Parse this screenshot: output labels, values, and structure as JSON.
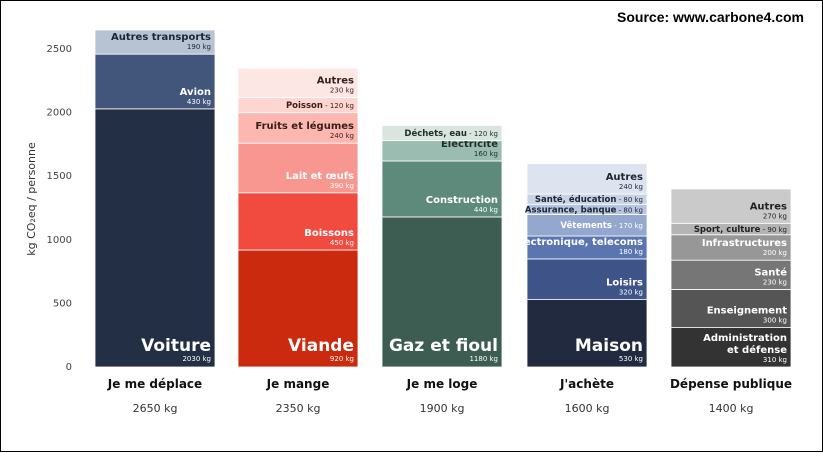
{
  "source": "Source: www.carbone4.com",
  "chart_data": {
    "type": "bar",
    "stacked": true,
    "title": "",
    "ylabel": "kg CO₂eq / personne",
    "ylim": [
      0,
      2650
    ],
    "yticks": [
      0,
      500,
      1000,
      1500,
      2000,
      2500
    ],
    "grid": false,
    "bars": [
      {
        "category": "Je me déplace",
        "total": "2650 kg",
        "segments": [
          {
            "name": "Voiture",
            "value": 2030,
            "label": "2030 kg",
            "color": "#232f45",
            "text_color": "#ffffff",
            "style": "big"
          },
          {
            "name": "Avion",
            "value": 430,
            "label": "430 kg",
            "color": "#41567a",
            "text_color": "#ffffff",
            "style": "name"
          },
          {
            "name": "Autres transports",
            "value": 190,
            "label": "190 kg",
            "color": "#b7c2d3",
            "text_color": "#1c2535",
            "style": "name"
          }
        ]
      },
      {
        "category": "Je mange",
        "total": "2350 kg",
        "segments": [
          {
            "name": "Viande",
            "value": 920,
            "label": "920 kg",
            "color": "#cc2a0e",
            "text_color": "#ffffff",
            "style": "big"
          },
          {
            "name": "Boissons",
            "value": 450,
            "label": "450 kg",
            "color": "#f04b3e",
            "text_color": "#ffffff",
            "style": "name"
          },
          {
            "name": "Lait et œufs",
            "value": 390,
            "label": "390 kg",
            "color": "#f8978f",
            "text_color": "#ffffff",
            "style": "name"
          },
          {
            "name": "Fruits et légumes",
            "value": 240,
            "label": "240 kg",
            "color": "#fbb7b0",
            "text_color": "#3a1d1a",
            "style": "name"
          },
          {
            "name": "Poisson",
            "value": 120,
            "label": "Poisson - 120 kg",
            "color": "#fdd5d1",
            "text_color": "#3a1d1a",
            "style": "inline"
          },
          {
            "name": "Autres",
            "value": 230,
            "label": "230 kg",
            "color": "#fde7e4",
            "text_color": "#3a1d1a",
            "style": "name"
          }
        ]
      },
      {
        "category": "Je me loge",
        "total": "1900 kg",
        "segments": [
          {
            "name": "Gaz et fioul",
            "value": 1180,
            "label": "1180 kg",
            "color": "#3d5c52",
            "text_color": "#ffffff",
            "style": "big"
          },
          {
            "name": "Construction",
            "value": 440,
            "label": "440 kg",
            "color": "#5d8a7a",
            "text_color": "#ffffff",
            "style": "name"
          },
          {
            "name": "Électricité",
            "value": 160,
            "label": "160 kg",
            "color": "#9bbcb0",
            "text_color": "#1f2e29",
            "style": "name"
          },
          {
            "name": "Déchets, eau",
            "value": 120,
            "label": "Déchets, eau - 120 kg",
            "color": "#d9e6e0",
            "text_color": "#1f2e29",
            "style": "inline"
          }
        ]
      },
      {
        "category": "J'achète",
        "total": "1600 kg",
        "segments": [
          {
            "name": "Maison",
            "value": 530,
            "label": "530 kg",
            "color": "#212a3e",
            "text_color": "#ffffff",
            "style": "big"
          },
          {
            "name": "Loisirs",
            "value": 320,
            "label": "320 kg",
            "color": "#3e5388",
            "text_color": "#ffffff",
            "style": "name"
          },
          {
            "name": "Électronique, telecoms",
            "value": 180,
            "label": "180 kg",
            "color": "#5a75b0",
            "text_color": "#ffffff",
            "style": "name"
          },
          {
            "name": "Vêtements",
            "value": 170,
            "label": "Vêtements - 170 kg",
            "color": "#93a7cf",
            "text_color": "#ffffff",
            "style": "inline"
          },
          {
            "name": "Assurance, banque",
            "value": 80,
            "label": "Assurance, banque - 80 kg",
            "color": "#b7c5e0",
            "text_color": "#1c2535",
            "style": "inline"
          },
          {
            "name": "Santé, éducation",
            "value": 80,
            "label": "Santé, éducation - 80 kg",
            "color": "#c9d3e6",
            "text_color": "#1c2535",
            "style": "inline"
          },
          {
            "name": "Autres",
            "value": 240,
            "label": "240 kg",
            "color": "#dde3ef",
            "text_color": "#1c2535",
            "style": "name"
          }
        ]
      },
      {
        "category": "Dépense publique",
        "total": "1400 kg",
        "segments": [
          {
            "name": "Administration\net défense",
            "value": 310,
            "label": "310 kg",
            "color": "#333333",
            "text_color": "#ffffff",
            "style": "name"
          },
          {
            "name": "Enseignement",
            "value": 300,
            "label": "300 kg",
            "color": "#555555",
            "text_color": "#ffffff",
            "style": "name"
          },
          {
            "name": "Santé",
            "value": 230,
            "label": "230 kg",
            "color": "#767676",
            "text_color": "#ffffff",
            "style": "name"
          },
          {
            "name": "Infrastructures",
            "value": 200,
            "label": "200 kg",
            "color": "#979797",
            "text_color": "#ffffff",
            "style": "name"
          },
          {
            "name": "Sport, culture",
            "value": 90,
            "label": "Sport, culture - 90 kg",
            "color": "#b4b4b4",
            "text_color": "#222222",
            "style": "inline"
          },
          {
            "name": "Autres",
            "value": 270,
            "label": "270 kg",
            "color": "#cacaca",
            "text_color": "#222222",
            "style": "name"
          }
        ]
      }
    ]
  }
}
